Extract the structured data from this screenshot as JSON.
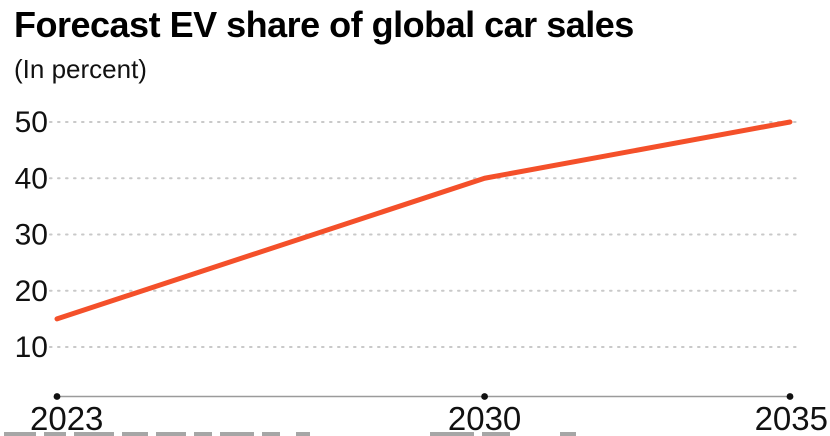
{
  "header": {
    "title": "Forecast EV share of global car sales",
    "subtitle": "(In percent)"
  },
  "chart_data": {
    "type": "line",
    "title": "Forecast EV share of global car sales",
    "subtitle": "(In percent)",
    "xlabel": "",
    "ylabel": "",
    "x": [
      2023,
      2030,
      2035
    ],
    "series": [
      {
        "name": "EV share of global car sales (%)",
        "values": [
          15,
          40,
          50
        ]
      }
    ],
    "x_ticks": [
      2023,
      2030,
      2035
    ],
    "x_tick_labels": [
      "2023",
      "2030",
      "2035"
    ],
    "y_ticks": [
      10,
      20,
      30,
      40,
      50
    ],
    "y_tick_labels": [
      "10",
      "20",
      "30",
      "40",
      "50"
    ],
    "xlim": [
      2023,
      2035
    ],
    "ylim": [
      0,
      50
    ],
    "grid": "horizontal-dotted",
    "legend": "none",
    "colors": {
      "line": "#f4502a",
      "gridline": "#c9c9c9",
      "axis_line": "#9b9b9b",
      "tick_dot": "#111111",
      "text": "#111111"
    }
  }
}
